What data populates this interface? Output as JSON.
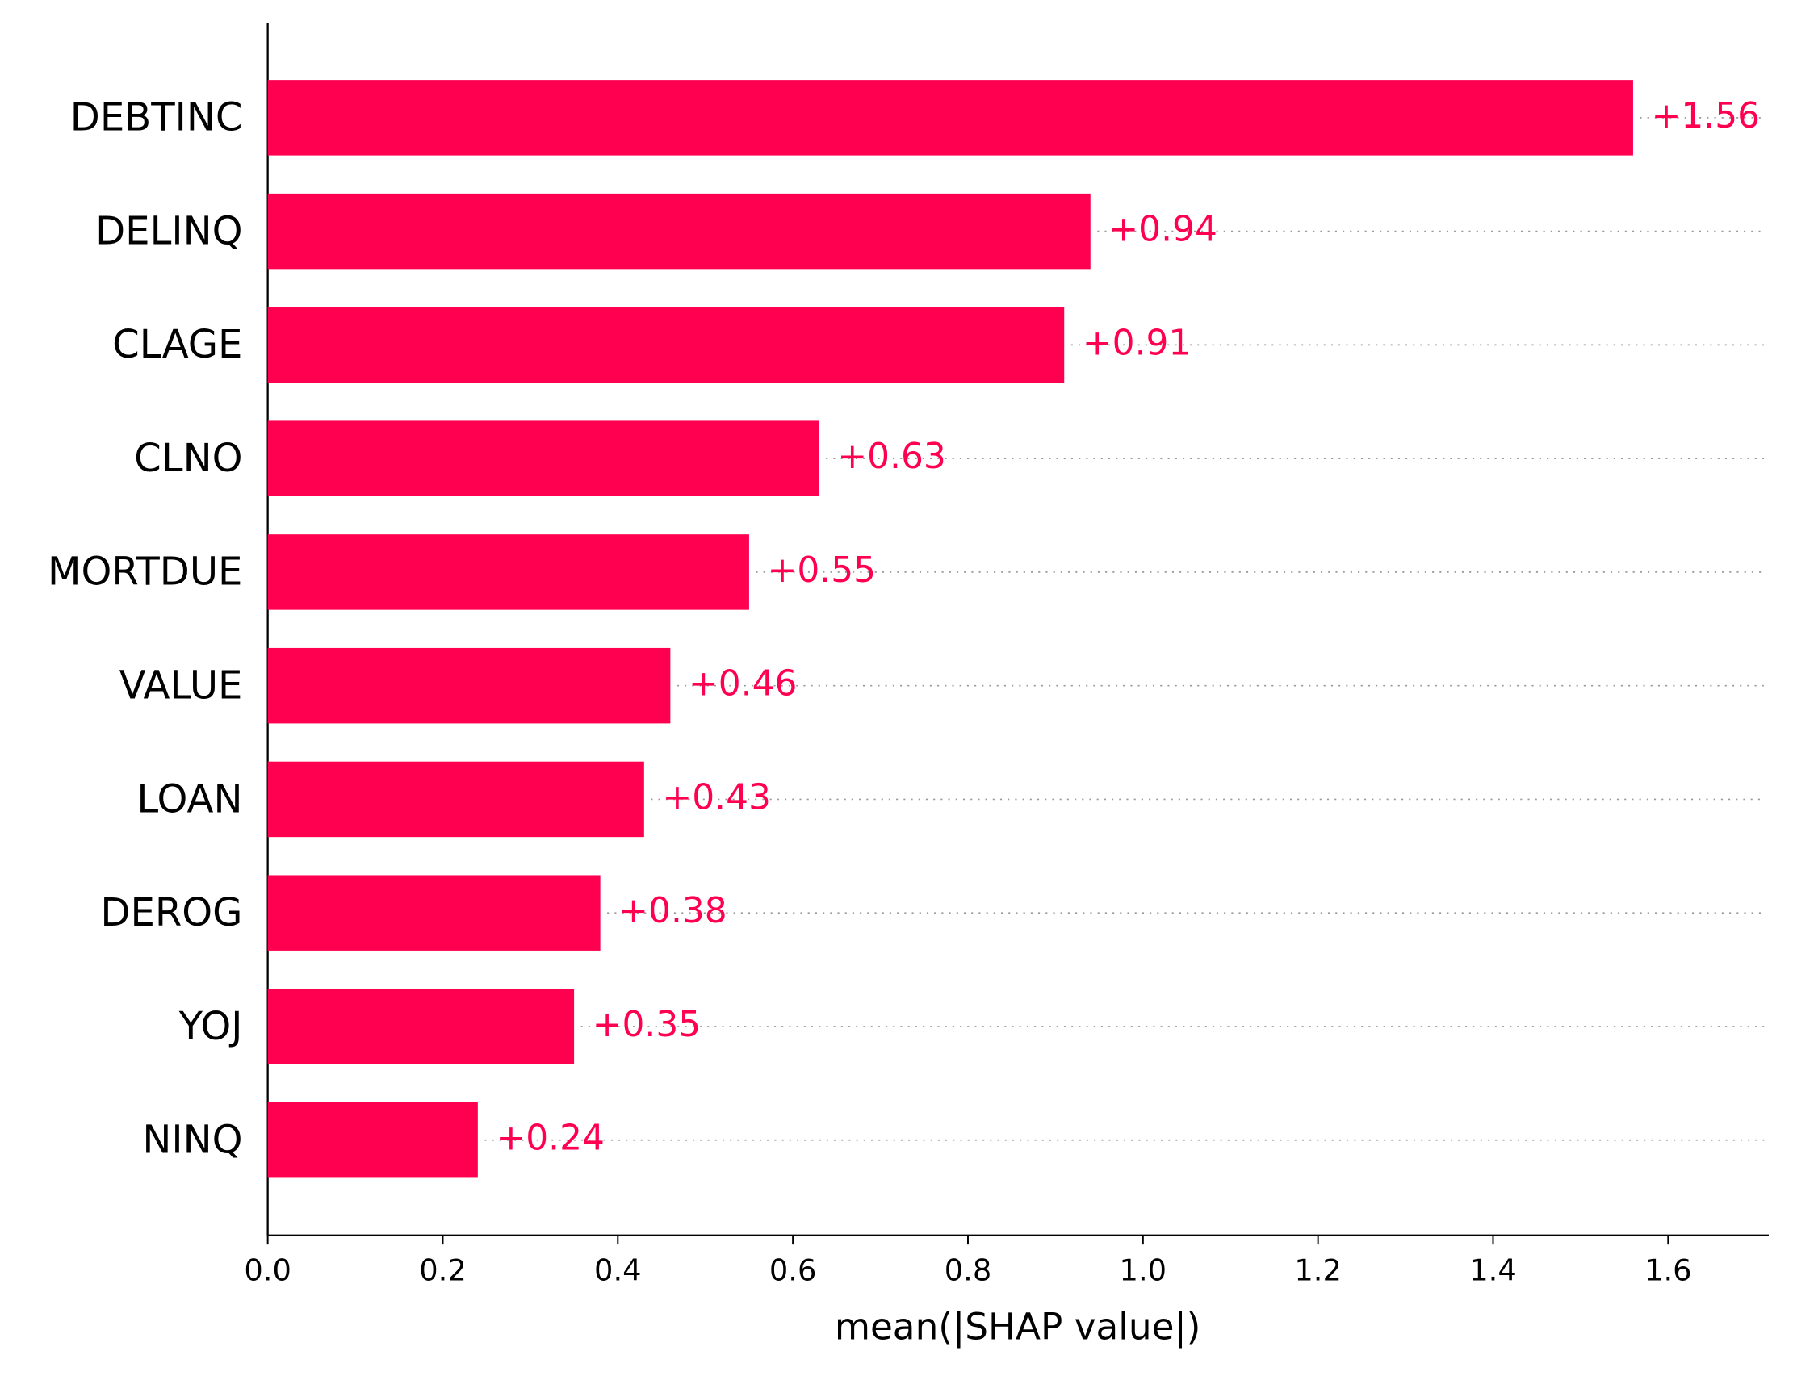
{
  "chart_data": {
    "type": "bar",
    "orientation": "horizontal",
    "xlabel": "mean(|SHAP value|)",
    "categories": [
      "DEBTINC",
      "DELINQ",
      "CLAGE",
      "CLNO",
      "MORTDUE",
      "VALUE",
      "LOAN",
      "DEROG",
      "YOJ",
      "NINQ"
    ],
    "values": [
      1.56,
      0.94,
      0.91,
      0.63,
      0.55,
      0.46,
      0.43,
      0.38,
      0.35,
      0.24
    ],
    "value_labels": [
      "+1.56",
      "+0.94",
      "+0.91",
      "+0.63",
      "+0.55",
      "+0.46",
      "+0.43",
      "+0.38",
      "+0.35",
      "+0.24"
    ],
    "color": "#ff0051",
    "xlim": [
      0,
      1.715
    ],
    "xticks": [
      {
        "value": 0,
        "label": "0.0"
      },
      0.2,
      0.4,
      0.6,
      0.8,
      {
        "value": 1,
        "label": "1.0"
      },
      1.2,
      1.4,
      1.6
    ]
  }
}
